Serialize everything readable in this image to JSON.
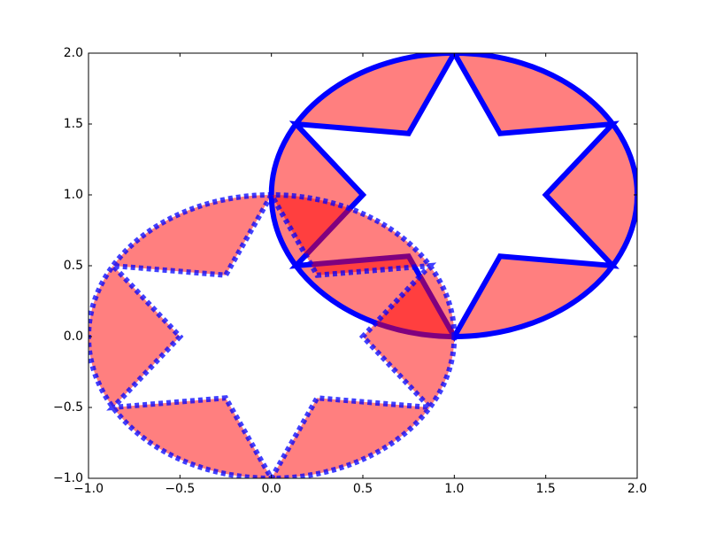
{
  "chart_data": {
    "type": "star-patch",
    "xlim": [
      -1,
      2
    ],
    "ylim": [
      -1,
      2
    ],
    "xticks": [
      {
        "value": -1,
        "label": "−1.0"
      },
      {
        "value": -0.5,
        "label": "−0.5"
      },
      {
        "value": 0,
        "label": "0.0"
      },
      {
        "value": 0.5,
        "label": "0.5"
      },
      {
        "value": 1,
        "label": "1.0"
      },
      {
        "value": 1.5,
        "label": "1.5"
      },
      {
        "value": 2,
        "label": "2.0"
      }
    ],
    "yticks": [
      {
        "value": -1,
        "label": "−1.0"
      },
      {
        "value": -0.5,
        "label": "−0.5"
      },
      {
        "value": 0,
        "label": "0.0"
      },
      {
        "value": 0.5,
        "label": "0.5"
      },
      {
        "value": 1,
        "label": "1.0"
      },
      {
        "value": 1.5,
        "label": "1.5"
      },
      {
        "value": 2,
        "label": "2.0"
      }
    ],
    "patches": [
      {
        "center": [
          1,
          1
        ],
        "outer_radius": 1,
        "inner_radius": 0.5,
        "points": 6,
        "start_angle_deg": 90,
        "face_color": "#ff0000",
        "face_alpha": 0.5,
        "edge_color": "#0000ff",
        "edge_alpha": 1,
        "edge_style": "solid"
      },
      {
        "center": [
          0,
          0
        ],
        "outer_radius": 1,
        "inner_radius": 0.5,
        "points": 6,
        "start_angle_deg": 90,
        "face_color": "#ff0000",
        "face_alpha": 0.5,
        "edge_color": "#0000ff",
        "edge_alpha": 0.75,
        "edge_style": "dotted"
      }
    ]
  }
}
